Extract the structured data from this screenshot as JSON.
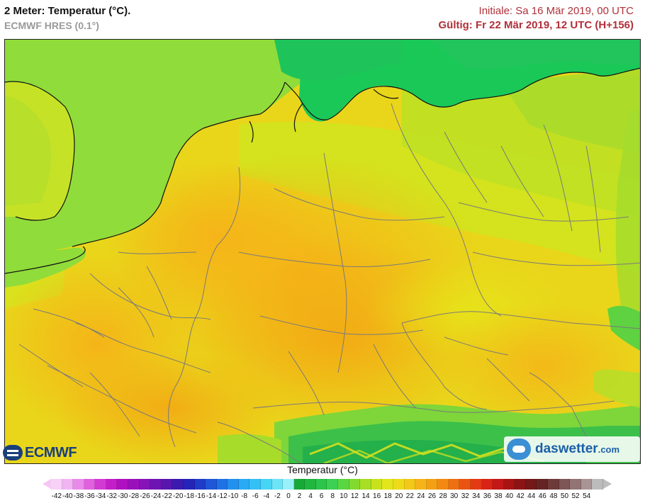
{
  "header": {
    "title": "2 Meter: Temperatur (°C).",
    "model": "ECMWF HRES (0.1°)",
    "initial": "Initiale: Sa 16 Mär 2019, 00 UTC",
    "valid": "Gültig: Fr 22 Mär 2019, 12 UTC (H+156)"
  },
  "map": {
    "region": "Mitteleuropa",
    "colors": {
      "sea_light": "#8fdc3a",
      "sea_deep": "#19c758",
      "land_yellow": "#e6e619",
      "land_orange": "#f5b918",
      "land_orange_deep": "#f0a012",
      "alps_green": "#2fbf4a",
      "border": "#7a7a7a",
      "coast": "#111111"
    }
  },
  "logos": {
    "left": "ECMWF",
    "right_main": "daswetter",
    "right_suffix": ".com"
  },
  "legend": {
    "title": "Temperatur (°C)",
    "labels": [
      "-42",
      "-40",
      "-38",
      "-36",
      "-34",
      "-32",
      "-30",
      "-28",
      "-26",
      "-24",
      "-22",
      "-20",
      "-18",
      "-16",
      "-14",
      "-12",
      "-10",
      "-8",
      "-6",
      "-4",
      "-2",
      "0",
      "2",
      "4",
      "6",
      "8",
      "10",
      "12",
      "14",
      "16",
      "18",
      "20",
      "22",
      "24",
      "26",
      "28",
      "30",
      "32",
      "34",
      "36",
      "38",
      "40",
      "42",
      "44",
      "46",
      "48",
      "50",
      "52",
      "54"
    ],
    "colors": [
      "#f8d0f8",
      "#f2b4f2",
      "#ea8aea",
      "#e060e0",
      "#d33ad3",
      "#c41ec8",
      "#b010c0",
      "#9a10bc",
      "#8612b8",
      "#6e14b4",
      "#5816ae",
      "#3c1ab0",
      "#2424b8",
      "#1f3cc8",
      "#2056d8",
      "#1f72e4",
      "#2290ee",
      "#28aaf4",
      "#34c0f4",
      "#48d4f4",
      "#6ce4f6",
      "#9af0f8",
      "#18a838",
      "#20b640",
      "#2cc44a",
      "#3cd054",
      "#5ad640",
      "#82da2e",
      "#a8de24",
      "#c8e21c",
      "#e2e61a",
      "#eeda18",
      "#f4c818",
      "#f5b418",
      "#f4a014",
      "#f28a12",
      "#ee7012",
      "#ea5412",
      "#e43a14",
      "#d82416",
      "#c41818",
      "#a81414",
      "#8c1414",
      "#741818",
      "#642424",
      "#6e3a3a",
      "#7e5656",
      "#927474",
      "#a89494",
      "#bcbcbc"
    ]
  }
}
